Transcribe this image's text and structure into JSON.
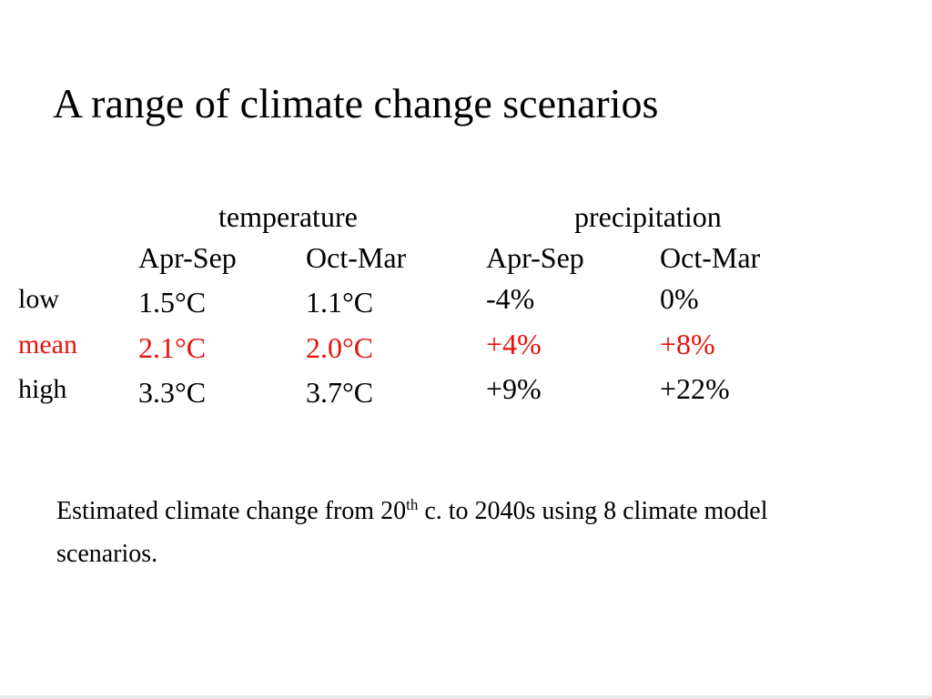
{
  "slide": {
    "title": "A range of climate change scenarios"
  },
  "table": {
    "groups": {
      "temperature": "temperature",
      "precipitation": "precipitation"
    },
    "subheaders": {
      "temp_apr_sep": "Apr-Sep",
      "temp_oct_mar": "Oct-Mar",
      "prec_apr_sep": "Apr-Sep",
      "prec_oct_mar": "Oct-Mar"
    },
    "rows": [
      {
        "label": "low",
        "temp_apr_sep": "1.5°C",
        "temp_oct_mar": "1.1°C",
        "prec_apr_sep": "-4%",
        "prec_oct_mar": "0%"
      },
      {
        "label": "mean",
        "temp_apr_sep": "2.1°C",
        "temp_oct_mar": "2.0°C",
        "prec_apr_sep": "+4%",
        "prec_oct_mar": "+8%"
      },
      {
        "label": "high",
        "temp_apr_sep": "3.3°C",
        "temp_oct_mar": "3.7°C",
        "prec_apr_sep": "+9%",
        "prec_oct_mar": "+22%"
      }
    ],
    "highlight_color": "#e8120c"
  },
  "caption": {
    "text_before": "Estimated climate change from 20",
    "superscript": "th",
    "text_after": " c. to 2040s using 8 climate model scenarios."
  }
}
